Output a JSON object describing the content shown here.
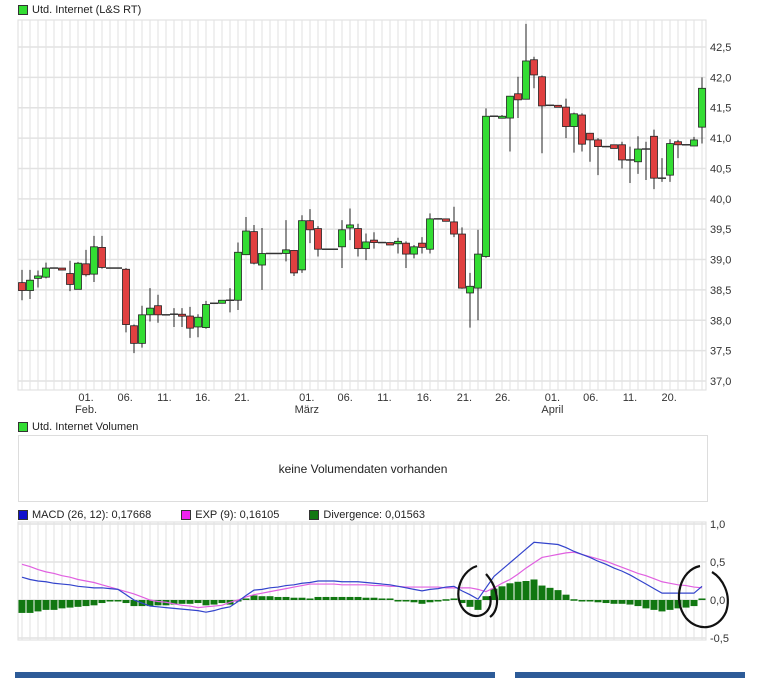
{
  "price_legend": {
    "label": "Utd. Internet (L&S RT)",
    "color": "#33dd33"
  },
  "volume_legend": {
    "label": "Utd. Internet Volumen",
    "color": "#33dd33"
  },
  "volume_message": "keine Volumendaten vorhanden",
  "macd_legend": [
    {
      "label": "MACD (26, 12): 0,17668",
      "color": "#1010cc"
    },
    {
      "label": "EXP (9): 0,16105",
      "color": "#ee22ee"
    },
    {
      "label": "Divergence: 0,01563",
      "color": "#117711"
    }
  ],
  "colors": {
    "up": "#33dd33",
    "down": "#e04040",
    "grid": "#e2e2e2",
    "macd": "#3344cc",
    "signal": "#e060e0",
    "divergence": "#117711",
    "footer_bar": "#2d5b98"
  },
  "chart_data": [
    {
      "type": "candlestick",
      "title": "Utd. Internet (L&S RT)",
      "ylim": [
        36.85,
        42.95
      ],
      "yticks": [
        "37,0",
        "37,5",
        "38,0",
        "38,5",
        "39,0",
        "39,5",
        "40,0",
        "40,5",
        "41,0",
        "41,5",
        "42,0",
        "42,5"
      ],
      "ytick_values": [
        37.0,
        37.5,
        38.0,
        38.5,
        39.0,
        39.5,
        40.0,
        40.5,
        41.0,
        41.5,
        42.0,
        42.5
      ],
      "grid": true,
      "xticks": [
        {
          "label": "01.",
          "at": 8
        },
        {
          "label": "06.",
          "at": 12.9
        },
        {
          "label": "11.",
          "at": 17.8
        },
        {
          "label": "16.",
          "at": 22.6
        },
        {
          "label": "21.",
          "at": 27.5
        },
        {
          "label": "01.",
          "at": 35.6
        },
        {
          "label": "06.",
          "at": 40.4
        },
        {
          "label": "11.",
          "at": 45.3
        },
        {
          "label": "16.",
          "at": 50.3
        },
        {
          "label": "21.",
          "at": 55.3
        },
        {
          "label": "26.",
          "at": 60.1
        },
        {
          "label": "01.",
          "at": 66.3
        },
        {
          "label": "06.",
          "at": 71.1
        },
        {
          "label": "11.",
          "at": 76
        },
        {
          "label": "20.",
          "at": 80.9
        }
      ],
      "months": [
        {
          "label": "Feb.",
          "at": 8
        },
        {
          "label": "März",
          "at": 35.6
        },
        {
          "label": "April",
          "at": 66.3
        }
      ],
      "ohlc_columns": [
        "open",
        "high",
        "low",
        "close"
      ],
      "candles": [
        [
          38.62,
          38.83,
          38.33,
          38.49
        ],
        [
          38.49,
          38.83,
          38.35,
          38.66
        ],
        [
          38.69,
          38.82,
          38.54,
          38.73
        ],
        [
          38.71,
          38.95,
          38.69,
          38.86
        ],
        [
          38.86,
          38.86,
          38.86,
          38.86
        ],
        [
          38.86,
          38.86,
          38.86,
          38.85
        ],
        [
          38.77,
          38.98,
          38.48,
          38.59
        ],
        [
          38.51,
          38.96,
          38.51,
          38.94
        ],
        [
          38.93,
          39.16,
          38.72,
          38.75
        ],
        [
          38.76,
          39.39,
          38.63,
          39.21
        ],
        [
          39.2,
          39.39,
          38.85,
          38.87
        ],
        [
          38.86,
          38.86,
          38.86,
          38.86
        ],
        [
          38.86,
          38.86,
          38.86,
          38.86
        ],
        [
          38.84,
          38.86,
          37.8,
          37.93
        ],
        [
          37.91,
          37.93,
          37.46,
          37.62
        ],
        [
          37.62,
          38.24,
          37.55,
          38.09
        ],
        [
          38.09,
          38.53,
          37.98,
          38.2
        ],
        [
          38.24,
          38.42,
          37.96,
          38.09
        ],
        [
          38.09,
          38.09,
          38.09,
          38.09
        ],
        [
          38.1,
          38.2,
          37.89,
          38.1
        ],
        [
          38.1,
          38.2,
          37.89,
          38.07
        ],
        [
          38.07,
          38.22,
          37.71,
          37.87
        ],
        [
          37.89,
          38.1,
          37.72,
          38.05
        ],
        [
          37.88,
          38.32,
          37.86,
          38.26
        ],
        [
          38.28,
          38.28,
          38.28,
          38.28
        ],
        [
          38.28,
          38.33,
          38.28,
          38.33
        ],
        [
          38.33,
          38.53,
          38.13,
          38.33
        ],
        [
          38.33,
          39.28,
          38.17,
          39.12
        ],
        [
          39.08,
          39.7,
          39.08,
          39.47
        ],
        [
          39.46,
          39.57,
          38.92,
          38.94
        ],
        [
          38.91,
          39.52,
          38.5,
          39.1
        ],
        [
          39.1,
          39.1,
          39.1,
          39.1
        ],
        [
          39.1,
          39.1,
          39.1,
          39.1
        ],
        [
          39.1,
          39.65,
          38.97,
          39.16
        ],
        [
          39.15,
          39.15,
          38.73,
          38.78
        ],
        [
          38.83,
          39.73,
          38.78,
          39.64
        ],
        [
          39.64,
          39.83,
          39.27,
          39.49
        ],
        [
          39.51,
          39.55,
          39.05,
          39.17
        ],
        [
          39.17,
          39.17,
          39.17,
          39.17
        ],
        [
          39.17,
          39.17,
          39.17,
          39.17
        ],
        [
          39.21,
          39.65,
          38.86,
          39.49
        ],
        [
          39.52,
          39.84,
          39.32,
          39.57
        ],
        [
          39.51,
          39.59,
          39.05,
          39.18
        ],
        [
          39.18,
          39.43,
          38.99,
          39.29
        ],
        [
          39.32,
          39.45,
          39.18,
          39.28
        ],
        [
          39.28,
          39.28,
          39.28,
          39.28
        ],
        [
          39.28,
          39.28,
          39.24,
          39.24
        ],
        [
          39.26,
          39.36,
          39.1,
          39.3
        ],
        [
          39.27,
          39.3,
          38.86,
          39.09
        ],
        [
          39.09,
          39.24,
          39.02,
          39.21
        ],
        [
          39.27,
          39.37,
          39.1,
          39.2
        ],
        [
          39.17,
          39.76,
          39.1,
          39.67
        ],
        [
          39.67,
          39.67,
          39.67,
          39.67
        ],
        [
          39.67,
          39.67,
          39.63,
          39.63
        ],
        [
          39.62,
          39.87,
          39.37,
          39.42
        ],
        [
          39.42,
          39.53,
          38.52,
          38.53
        ],
        [
          38.45,
          38.78,
          37.88,
          38.56
        ],
        [
          38.53,
          39.49,
          38.0,
          39.09
        ],
        [
          39.05,
          41.49,
          39.03,
          41.36
        ],
        [
          41.36,
          41.36,
          41.36,
          41.36
        ],
        [
          41.34,
          41.38,
          41.34,
          41.36
        ],
        [
          41.33,
          41.69,
          40.78,
          41.69
        ],
        [
          41.73,
          42.01,
          41.33,
          41.63
        ],
        [
          41.64,
          42.88,
          41.64,
          42.27
        ],
        [
          42.29,
          42.34,
          41.82,
          42.04
        ],
        [
          42.01,
          42.03,
          40.75,
          41.53
        ],
        [
          41.54,
          41.54,
          41.54,
          41.54
        ],
        [
          41.54,
          41.54,
          41.51,
          41.51
        ],
        [
          41.51,
          41.65,
          41.0,
          41.19
        ],
        [
          41.19,
          41.42,
          40.76,
          41.4
        ],
        [
          41.38,
          41.41,
          40.78,
          40.9
        ],
        [
          41.08,
          41.08,
          40.61,
          40.97
        ],
        [
          40.97,
          41.0,
          40.39,
          40.86
        ],
        [
          40.86,
          40.86,
          40.86,
          40.86
        ],
        [
          40.89,
          40.89,
          40.83,
          40.83
        ],
        [
          40.89,
          40.94,
          40.5,
          40.64
        ],
        [
          40.64,
          40.86,
          40.26,
          40.64
        ],
        [
          40.61,
          41.03,
          40.41,
          40.82
        ],
        [
          40.82,
          40.94,
          40.31,
          40.82
        ],
        [
          41.03,
          41.14,
          40.16,
          40.34
        ],
        [
          40.34,
          40.67,
          40.28,
          40.34
        ],
        [
          40.39,
          40.98,
          40.28,
          40.91
        ],
        [
          40.94,
          40.97,
          40.67,
          40.89
        ],
        [
          40.89,
          40.89,
          40.89,
          40.89
        ],
        [
          40.87,
          41.02,
          40.87,
          40.97
        ],
        [
          41.18,
          42.0,
          40.91,
          41.82
        ]
      ]
    },
    {
      "type": "line+bar",
      "ylim": [
        -0.5,
        1.0
      ],
      "yticks": [
        "1,0",
        "0,5",
        "0,0",
        "-0,5"
      ],
      "ytick_values": [
        1.0,
        0.5,
        0.0,
        -0.5
      ],
      "grid": true,
      "series": [
        {
          "name": "MACD (26, 12)",
          "type": "line",
          "values": [
            0.3,
            0.27,
            0.25,
            0.24,
            0.22,
            0.21,
            0.2,
            0.18,
            0.17,
            0.16,
            0.16,
            0.15,
            0.14,
            0.07,
            0.0,
            -0.04,
            -0.08,
            -0.09,
            -0.1,
            -0.11,
            -0.12,
            -0.13,
            -0.14,
            -0.16,
            -0.14,
            -0.11,
            -0.09,
            -0.02,
            0.06,
            0.13,
            0.14,
            0.16,
            0.17,
            0.19,
            0.2,
            0.22,
            0.23,
            0.25,
            0.25,
            0.25,
            0.24,
            0.24,
            0.24,
            0.23,
            0.22,
            0.21,
            0.2,
            0.18,
            0.16,
            0.14,
            0.12,
            0.14,
            0.15,
            0.17,
            0.18,
            0.12,
            0.07,
            0.01,
            0.16,
            0.31,
            0.4,
            0.49,
            0.58,
            0.67,
            0.76,
            0.75,
            0.74,
            0.73,
            0.69,
            0.64,
            0.6,
            0.56,
            0.51,
            0.47,
            0.42,
            0.38,
            0.33,
            0.27,
            0.21,
            0.15,
            0.09,
            0.09,
            0.09,
            0.09,
            0.09,
            0.18
          ]
        },
        {
          "name": "EXP (9)",
          "type": "line",
          "values": [
            0.47,
            0.44,
            0.4,
            0.37,
            0.35,
            0.32,
            0.3,
            0.27,
            0.25,
            0.23,
            0.2,
            0.17,
            0.14,
            0.11,
            0.08,
            0.04,
            0.0,
            -0.02,
            -0.03,
            -0.05,
            -0.07,
            -0.08,
            -0.1,
            -0.09,
            -0.08,
            -0.07,
            -0.03,
            0.0,
            0.04,
            0.07,
            0.09,
            0.11,
            0.13,
            0.15,
            0.17,
            0.19,
            0.21,
            0.21,
            0.21,
            0.21,
            0.2,
            0.2,
            0.2,
            0.2,
            0.19,
            0.19,
            0.18,
            0.18,
            0.17,
            0.17,
            0.17,
            0.17,
            0.17,
            0.16,
            0.16,
            0.16,
            0.16,
            0.14,
            0.11,
            0.16,
            0.22,
            0.27,
            0.34,
            0.42,
            0.49,
            0.56,
            0.58,
            0.6,
            0.62,
            0.63,
            0.6,
            0.57,
            0.54,
            0.51,
            0.47,
            0.43,
            0.39,
            0.35,
            0.32,
            0.28,
            0.24,
            0.22,
            0.2,
            0.19,
            0.17,
            0.16
          ]
        },
        {
          "name": "Divergence",
          "type": "bar",
          "values": [
            -0.17,
            -0.17,
            -0.15,
            -0.13,
            -0.13,
            -0.11,
            -0.1,
            -0.09,
            -0.08,
            -0.07,
            -0.04,
            -0.02,
            0.0,
            -0.04,
            -0.08,
            -0.08,
            -0.08,
            -0.07,
            -0.07,
            -0.06,
            -0.05,
            -0.05,
            -0.04,
            -0.07,
            -0.06,
            -0.04,
            -0.06,
            -0.02,
            0.02,
            0.06,
            0.05,
            0.05,
            0.04,
            0.04,
            0.03,
            0.03,
            0.02,
            0.04,
            0.04,
            0.04,
            0.04,
            0.04,
            0.04,
            0.03,
            0.03,
            0.02,
            0.02,
            0.0,
            -0.01,
            -0.03,
            -0.05,
            -0.03,
            -0.02,
            0.01,
            0.02,
            -0.04,
            -0.09,
            -0.13,
            0.05,
            0.15,
            0.18,
            0.22,
            0.24,
            0.25,
            0.27,
            0.19,
            0.16,
            0.13,
            0.07,
            0.01,
            0.0,
            -0.01,
            -0.03,
            -0.04,
            -0.05,
            -0.05,
            -0.06,
            -0.08,
            -0.11,
            -0.13,
            -0.15,
            -0.13,
            -0.11,
            -0.1,
            -0.08,
            0.02
          ]
        }
      ]
    }
  ]
}
